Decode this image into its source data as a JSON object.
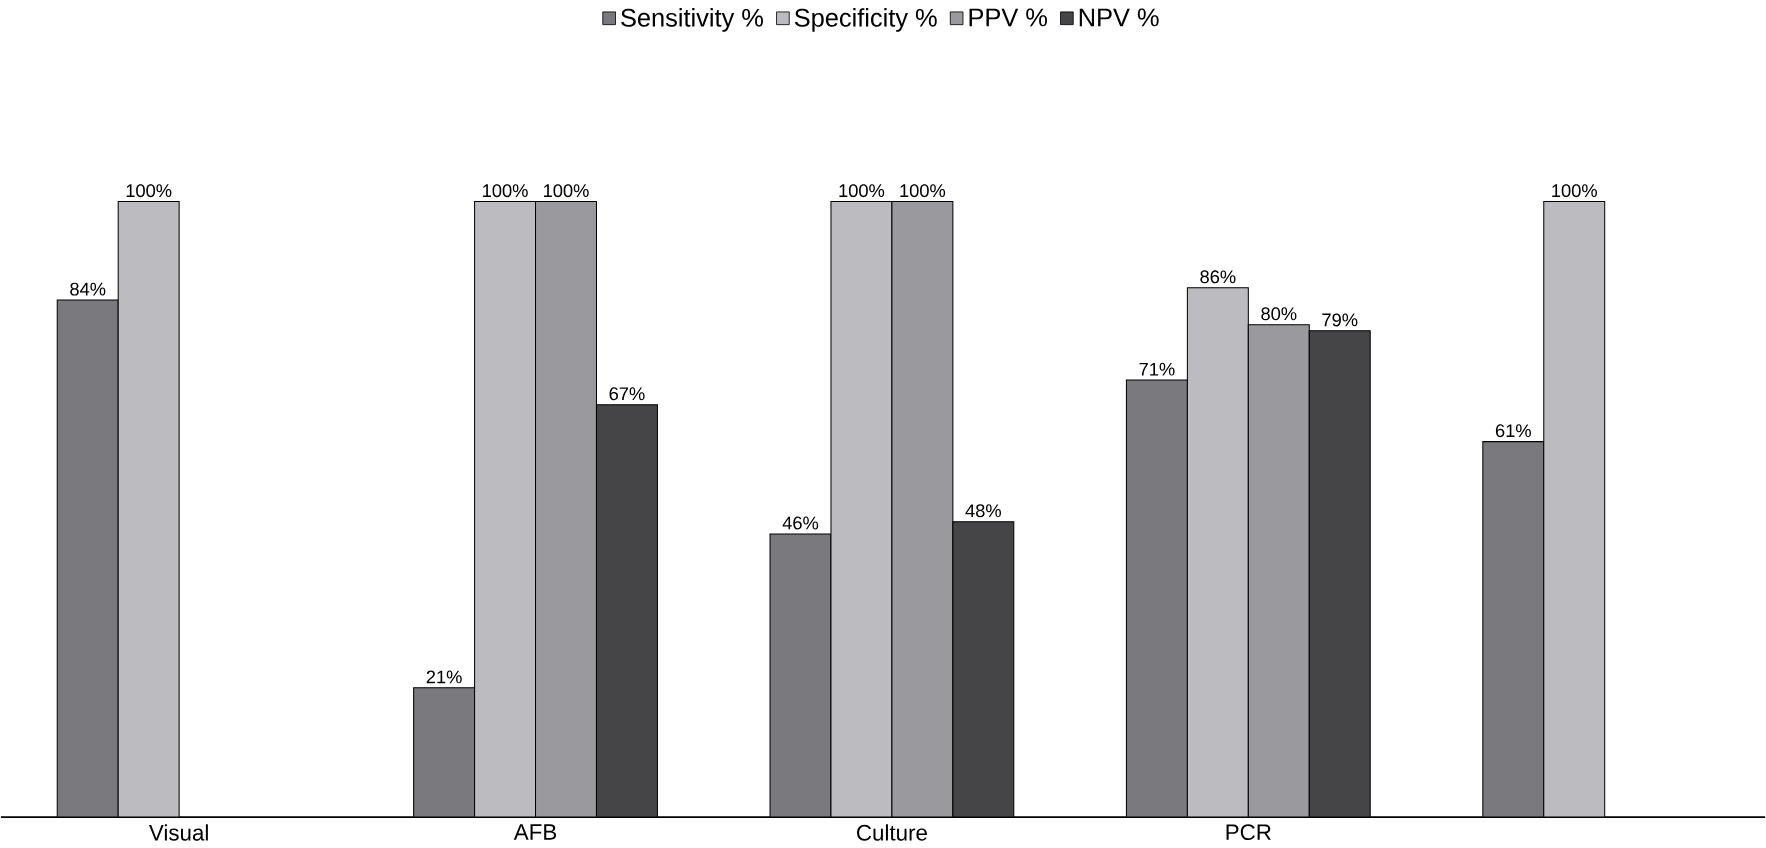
{
  "chart_data": {
    "type": "bar",
    "legend": "top",
    "categories": [
      "Visual",
      "AFB",
      "Culture",
      "PCR",
      null
    ],
    "series": [
      {
        "name": "Sensitivity %",
        "color": "#7a7a7e",
        "values": [
          84,
          21,
          46,
          71,
          61
        ],
        "value_labels": [
          "84%",
          "21%",
          "46%",
          "71%",
          "61%"
        ]
      },
      {
        "name": "Specificity %",
        "color": "#bcbcc0",
        "values": [
          100,
          100,
          100,
          86,
          100
        ],
        "value_labels": [
          "100%",
          "100%",
          "100%",
          "86%",
          "100%"
        ]
      },
      {
        "name": "PPV %",
        "color": "#9a9a9e",
        "values": [
          null,
          100,
          100,
          80,
          null
        ],
        "value_labels": [
          null,
          "100%",
          "100%",
          "80%",
          null
        ]
      },
      {
        "name": "NPV %",
        "color": "#454547",
        "values": [
          null,
          67,
          48,
          79,
          null
        ],
        "value_labels": [
          null,
          "67%",
          "48%",
          "79%",
          null
        ]
      }
    ]
  }
}
